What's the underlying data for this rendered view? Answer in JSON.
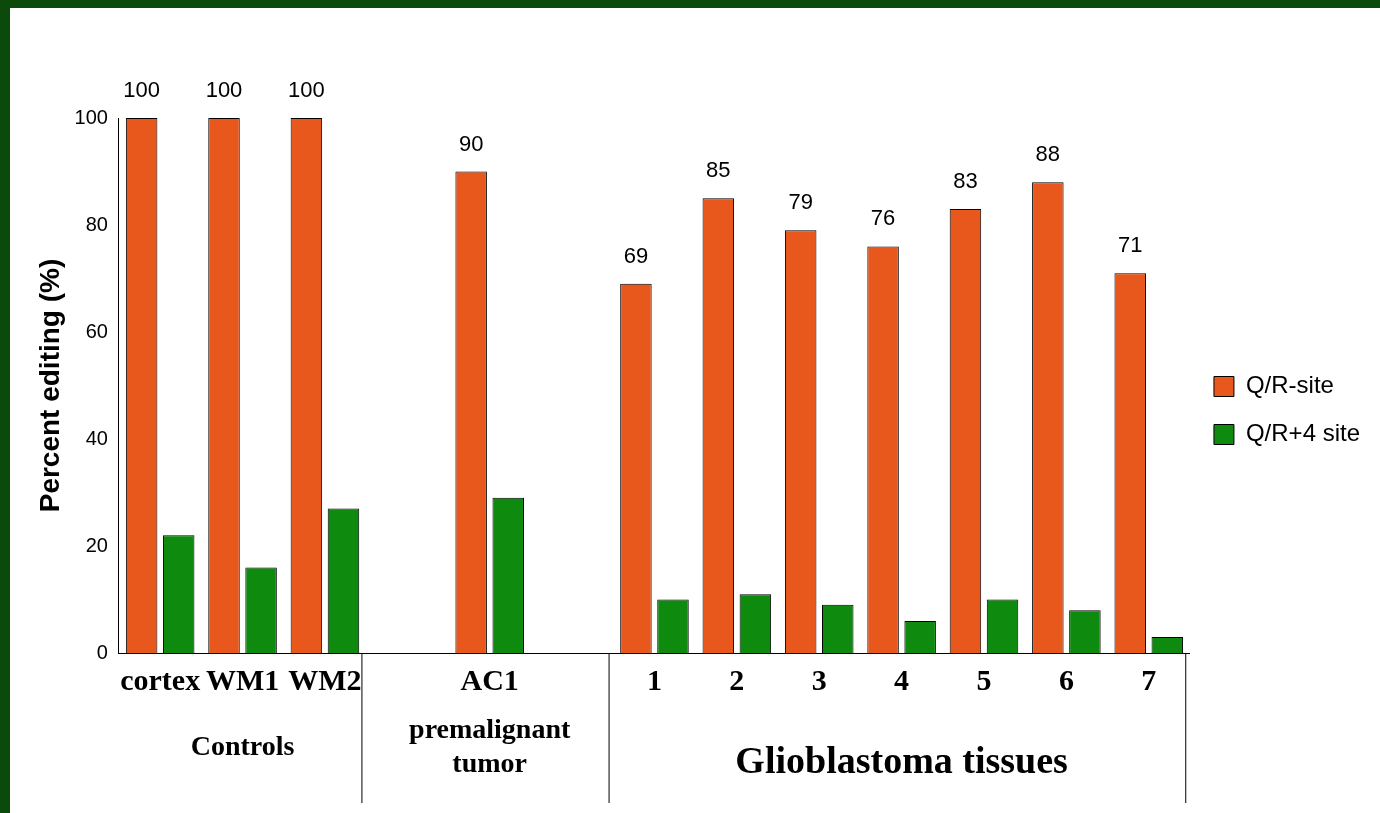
{
  "chart_data": {
    "type": "bar",
    "ylabel": "Percent editing (%)",
    "categories": [
      "cortex",
      "WM1",
      "WM2",
      null,
      "AC1",
      null,
      "1",
      "2",
      "3",
      "4",
      "5",
      "6",
      "7"
    ],
    "series": [
      {
        "name": "Q/R-site",
        "color": "#e8581c",
        "values": [
          100,
          100,
          100,
          null,
          90,
          null,
          69,
          85,
          79,
          76,
          83,
          88,
          71
        ],
        "value_labels": [
          "100",
          "100",
          "100",
          null,
          "90",
          null,
          "69",
          "85",
          "79",
          "76",
          "83",
          "88",
          "71"
        ]
      },
      {
        "name": "Q/R+4 site",
        "color": "#0e8a0e",
        "values": [
          22,
          16,
          27,
          null,
          29,
          null,
          10,
          11,
          9,
          6,
          10,
          8,
          3
        ]
      }
    ],
    "ylim": [
      0,
      100
    ],
    "yticks": [
      0,
      20,
      40,
      60,
      80,
      100
    ],
    "grid": false,
    "legend": "right",
    "annotations": [
      "Controls",
      "premalignant tumor",
      "Glioblastoma tissues"
    ]
  }
}
